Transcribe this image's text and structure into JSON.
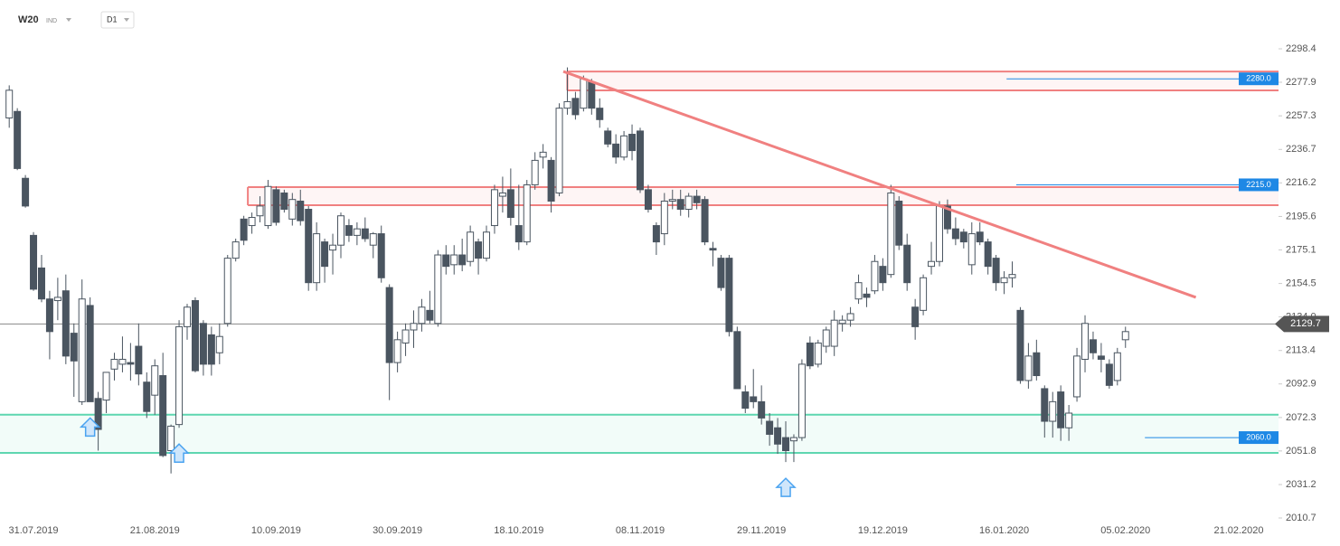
{
  "header": {
    "symbol": "W20",
    "market": "IND",
    "interval": "D1"
  },
  "chart_data": {
    "type": "candlestick",
    "categories": [
      null,
      null,
      null,
      "31.07.2019",
      null,
      null,
      null,
      null,
      null,
      null,
      null,
      null,
      null,
      null,
      null,
      null,
      null,
      null,
      "21.08.2019",
      null,
      null,
      null,
      null,
      null,
      null,
      null,
      null,
      null,
      null,
      null,
      null,
      null,
      null,
      "10.09.2019",
      null,
      null,
      null,
      null,
      null,
      null,
      null,
      null,
      null,
      null,
      null,
      null,
      null,
      null,
      "30.09.2019",
      null,
      null,
      null,
      null,
      null,
      null,
      null,
      null,
      null,
      null,
      null,
      null,
      null,
      null,
      "18.10.2019",
      null,
      null,
      null,
      null,
      null,
      null,
      null,
      null,
      null,
      null,
      null,
      null,
      null,
      null,
      "08.11.2019",
      null,
      null,
      null,
      null,
      null,
      null,
      null,
      null,
      null,
      null,
      null,
      null,
      null,
      null,
      "29.11.2019",
      null,
      null,
      null,
      null,
      null,
      null,
      null,
      null,
      null,
      null,
      null,
      null,
      null,
      null,
      "19.12.2019",
      null,
      null,
      null,
      null,
      null,
      null,
      null,
      null,
      null,
      null,
      null,
      null,
      null,
      null,
      "16.01.2020",
      null,
      null,
      null,
      null,
      null,
      null,
      null,
      null,
      null,
      null,
      null,
      null,
      null,
      null,
      "05.02.2020",
      null,
      null,
      null,
      null,
      null,
      null,
      null,
      null,
      null,
      null,
      null,
      null,
      null,
      "21.02.2020"
    ],
    "ohlc": [
      [
        2256,
        2276,
        2250,
        2273
      ],
      [
        2260,
        2262,
        2224,
        2225
      ],
      [
        2219,
        2221,
        2201,
        2202
      ],
      [
        2184,
        2186,
        2150,
        2151
      ],
      [
        2164,
        2172,
        2143,
        2145
      ],
      [
        2145,
        2150,
        2108,
        2125
      ],
      [
        2144,
        2158,
        2132,
        2146
      ],
      [
        2150,
        2160,
        2105,
        2110
      ],
      [
        2124,
        2130,
        2085,
        2107
      ],
      [
        2082,
        2157,
        2080,
        2145
      ],
      [
        2141,
        2146,
        2082,
        2082
      ],
      [
        2084,
        2088,
        2052,
        2065
      ],
      [
        2083,
        2100,
        2075,
        2100
      ],
      [
        2102,
        2112,
        2095,
        2108
      ],
      [
        2105,
        2122,
        2100,
        2108
      ],
      [
        2106,
        2118,
        2095,
        2105
      ],
      [
        2116,
        2130,
        2092,
        2099
      ],
      [
        2094,
        2100,
        2072,
        2076
      ],
      [
        2086,
        2108,
        2074,
        2104
      ],
      [
        2098,
        2112,
        2048,
        2049
      ],
      [
        2052,
        2068,
        2038,
        2067
      ],
      [
        2068,
        2132,
        2066,
        2128
      ],
      [
        2128,
        2142,
        2120,
        2140
      ],
      [
        2144,
        2146,
        2100,
        2101
      ],
      [
        2130,
        2132,
        2098,
        2105
      ],
      [
        2123,
        2128,
        2098,
        2105
      ],
      [
        2112,
        2130,
        2105,
        2122
      ],
      [
        2130,
        2172,
        2128,
        2170
      ],
      [
        2170,
        2182,
        2168,
        2180
      ],
      [
        2194,
        2196,
        2178,
        2181
      ],
      [
        2190,
        2198,
        2185,
        2195
      ],
      [
        2196,
        2208,
        2192,
        2202
      ],
      [
        2190,
        2218,
        2188,
        2214
      ],
      [
        2212,
        2214,
        2190,
        2192
      ],
      [
        2210,
        2212,
        2198,
        2200
      ],
      [
        2194,
        2210,
        2190,
        2206
      ],
      [
        2205,
        2212,
        2190,
        2193
      ],
      [
        2200,
        2202,
        2150,
        2155
      ],
      [
        2155,
        2192,
        2150,
        2185
      ],
      [
        2180,
        2182,
        2155,
        2165
      ],
      [
        2175,
        2185,
        2160,
        2178
      ],
      [
        2178,
        2198,
        2170,
        2196
      ],
      [
        2190,
        2194,
        2180,
        2184
      ],
      [
        2184,
        2192,
        2178,
        2188
      ],
      [
        2188,
        2195,
        2180,
        2182
      ],
      [
        2178,
        2186,
        2170,
        2185
      ],
      [
        2185,
        2190,
        2155,
        2158
      ],
      [
        2152,
        2154,
        2083,
        2106
      ],
      [
        2106,
        2125,
        2100,
        2120
      ],
      [
        2118,
        2130,
        2110,
        2126
      ],
      [
        2126,
        2138,
        2115,
        2130
      ],
      [
        2130,
        2145,
        2125,
        2140
      ],
      [
        2138,
        2150,
        2130,
        2132
      ],
      [
        2130,
        2175,
        2128,
        2172
      ],
      [
        2172,
        2178,
        2160,
        2165
      ],
      [
        2166,
        2178,
        2160,
        2172
      ],
      [
        2172,
        2182,
        2162,
        2166
      ],
      [
        2168,
        2190,
        2165,
        2186
      ],
      [
        2180,
        2182,
        2160,
        2170
      ],
      [
        2170,
        2190,
        2168,
        2186
      ],
      [
        2190,
        2215,
        2185,
        2212
      ],
      [
        2208,
        2220,
        2198,
        2210
      ],
      [
        2212,
        2225,
        2190,
        2195
      ],
      [
        2190,
        2215,
        2175,
        2180
      ],
      [
        2180,
        2218,
        2178,
        2215
      ],
      [
        2215,
        2235,
        2212,
        2230
      ],
      [
        2232,
        2240,
        2225,
        2235
      ],
      [
        2230,
        2232,
        2198,
        2205
      ],
      [
        2210,
        2265,
        2208,
        2262
      ],
      [
        2262,
        2287,
        2258,
        2266
      ],
      [
        2268,
        2272,
        2255,
        2258
      ],
      [
        2262,
        2282,
        2260,
        2280
      ],
      [
        2278,
        2280,
        2258,
        2262
      ],
      [
        2262,
        2268,
        2250,
        2255
      ],
      [
        2248,
        2250,
        2238,
        2240
      ],
      [
        2240,
        2246,
        2228,
        2232
      ],
      [
        2232,
        2248,
        2230,
        2245
      ],
      [
        2246,
        2252,
        2230,
        2236
      ],
      [
        2248,
        2250,
        2210,
        2212
      ],
      [
        2212,
        2215,
        2198,
        2200
      ],
      [
        2190,
        2192,
        2172,
        2180
      ],
      [
        2185,
        2210,
        2178,
        2205
      ],
      [
        2205,
        2212,
        2200,
        2206
      ],
      [
        2206,
        2212,
        2196,
        2200
      ],
      [
        2200,
        2210,
        2195,
        2208
      ],
      [
        2208,
        2212,
        2200,
        2204
      ],
      [
        2206,
        2208,
        2178,
        2180
      ],
      [
        2176,
        2180,
        2165,
        2175
      ],
      [
        2170,
        2172,
        2150,
        2152
      ],
      [
        2170,
        2172,
        2122,
        2125
      ],
      [
        2125,
        2128,
        2090,
        2090
      ],
      [
        2088,
        2092,
        2075,
        2078
      ],
      [
        2085,
        2102,
        2078,
        2082
      ],
      [
        2082,
        2092,
        2068,
        2072
      ],
      [
        2070,
        2075,
        2055,
        2062
      ],
      [
        2066,
        2072,
        2050,
        2056
      ],
      [
        2060,
        2070,
        2045,
        2052
      ],
      [
        2058,
        2062,
        2045,
        2060
      ],
      [
        2060,
        2108,
        2058,
        2105
      ],
      [
        2118,
        2122,
        2102,
        2104
      ],
      [
        2105,
        2120,
        2103,
        2118
      ],
      [
        2116,
        2128,
        2112,
        2126
      ],
      [
        2116,
        2138,
        2110,
        2132
      ],
      [
        2130,
        2135,
        2125,
        2132
      ],
      [
        2132,
        2140,
        2128,
        2136
      ],
      [
        2145,
        2160,
        2142,
        2155
      ],
      [
        2148,
        2152,
        2140,
        2146
      ],
      [
        2150,
        2172,
        2148,
        2168
      ],
      [
        2165,
        2170,
        2150,
        2155
      ],
      [
        2160,
        2215,
        2158,
        2210
      ],
      [
        2205,
        2208,
        2175,
        2178
      ],
      [
        2178,
        2185,
        2150,
        2155
      ],
      [
        2140,
        2145,
        2120,
        2128
      ],
      [
        2138,
        2160,
        2135,
        2158
      ],
      [
        2165,
        2180,
        2160,
        2168
      ],
      [
        2168,
        2205,
        2165,
        2202
      ],
      [
        2202,
        2206,
        2185,
        2188
      ],
      [
        2188,
        2195,
        2178,
        2182
      ],
      [
        2186,
        2188,
        2176,
        2180
      ],
      [
        2166,
        2192,
        2160,
        2185
      ],
      [
        2186,
        2192,
        2178,
        2180
      ],
      [
        2180,
        2182,
        2160,
        2165
      ],
      [
        2170,
        2172,
        2150,
        2155
      ],
      [
        2155,
        2162,
        2148,
        2158
      ],
      [
        2158,
        2168,
        2152,
        2160
      ],
      [
        2138,
        2140,
        2093,
        2095
      ],
      [
        2095,
        2118,
        2090,
        2110
      ],
      [
        2112,
        2120,
        2095,
        2098
      ],
      [
        2090,
        2092,
        2060,
        2070
      ],
      [
        2070,
        2088,
        2060,
        2082
      ],
      [
        2088,
        2092,
        2058,
        2066
      ],
      [
        2066,
        2080,
        2058,
        2075
      ],
      [
        2085,
        2115,
        2082,
        2110
      ],
      [
        2108,
        2135,
        2100,
        2130
      ],
      [
        2120,
        2125,
        2108,
        2112
      ],
      [
        2110,
        2118,
        2100,
        2108
      ],
      [
        2105,
        2108,
        2090,
        2092
      ],
      [
        2095,
        2115,
        2092,
        2112
      ],
      [
        2120,
        2128,
        2115,
        2125
      ],
      null,
      null,
      null,
      null,
      null,
      null,
      null,
      null,
      null,
      null,
      null,
      null,
      null
    ],
    "up_color": "#ffffff",
    "down_color": "#4a5560",
    "ylim": [
      2010.7,
      2298.4
    ],
    "yticks": [
      2298.4,
      2277.9,
      2257.3,
      2236.7,
      2216.2,
      2195.6,
      2175.1,
      2154.5,
      {
        "value": 2134,
        "label": "2134.0"
      },
      2113.4,
      2092.9,
      2072.3,
      2051.8,
      2031.2,
      2010.7
    ],
    "zones": [
      {
        "low": 2272.9,
        "high": 2284.5,
        "from": 69,
        "color": "#f08080"
      },
      {
        "low": 2202.5,
        "high": 2213.6,
        "from": 29.5,
        "color": "#f08080"
      },
      {
        "low": 2050.6,
        "high": 2074,
        "color": "#5ed6b0"
      }
    ],
    "levels": [
      {
        "value": 2280,
        "label": "2280.0",
        "from": 123.3
      },
      {
        "value": 2215,
        "label": "2215.0",
        "from": 124.5
      },
      {
        "value": 2060,
        "label": "2060.0",
        "from": 140.4
      }
    ],
    "level_color": "#1e88e5",
    "trendline": {
      "start": [
        68.5,
        2284.5
      ],
      "end": [
        146.7,
        2146
      ],
      "color": "#f08080"
    },
    "current_price": 2129.7,
    "markers": [
      10,
      21,
      96
    ],
    "marker_color": "#4aa3f0"
  }
}
